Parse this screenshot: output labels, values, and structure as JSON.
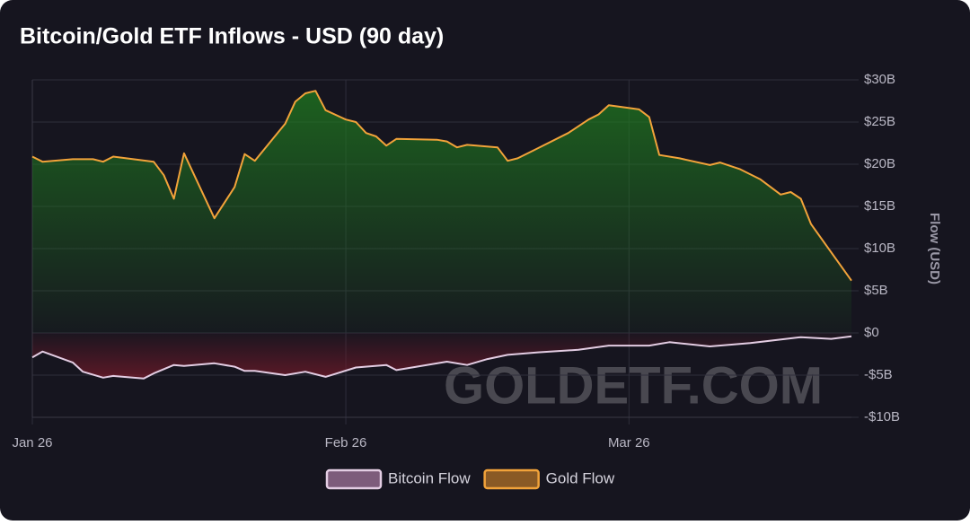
{
  "chart_data": {
    "type": "area",
    "title": "Bitcoin/Gold ETF Inflows - USD (90 day)",
    "y_label": "Flow (USD)",
    "watermark": "GOLDETF.COM",
    "xlim": [
      0,
      81
    ],
    "xticks": [
      {
        "value": 0,
        "label": "Jan 26"
      },
      {
        "value": 31,
        "label": "Feb 26"
      },
      {
        "value": 59,
        "label": "Mar 26"
      }
    ],
    "ylim": [
      -10,
      30
    ],
    "yticks": [
      {
        "value": 30,
        "label": "$30B"
      },
      {
        "value": 25,
        "label": "$25B"
      },
      {
        "value": 20,
        "label": "$20B"
      },
      {
        "value": 15,
        "label": "$15B"
      },
      {
        "value": 10,
        "label": "$10B"
      },
      {
        "value": 5,
        "label": "$5B"
      },
      {
        "value": 0,
        "label": "$0"
      },
      {
        "value": -5,
        "label": "-$5B"
      },
      {
        "value": -10,
        "label": "-$10B"
      }
    ],
    "grid": true,
    "legend": "bottom",
    "series": [
      {
        "name": "Bitcoin Flow",
        "color": "#e3cde3",
        "fill": "#7d5c7b",
        "area_color": "#7a1a2a",
        "x": [
          0,
          1,
          4,
          5,
          7,
          8,
          11,
          12,
          14,
          15,
          18,
          20,
          21,
          22,
          25,
          27,
          29,
          32,
          35,
          36,
          38,
          41,
          43,
          45,
          47,
          50,
          54,
          57,
          61,
          63,
          67,
          71,
          76,
          79,
          81
        ],
        "values": [
          -2.9,
          -2.2,
          -3.5,
          -4.6,
          -5.3,
          -5.1,
          -5.4,
          -4.8,
          -3.8,
          -3.9,
          -3.6,
          -4.0,
          -4.5,
          -4.5,
          -5.0,
          -4.6,
          -5.2,
          -4.1,
          -3.8,
          -4.4,
          -4.0,
          -3.4,
          -3.8,
          -3.1,
          -2.6,
          -2.3,
          -2.0,
          -1.5,
          -1.5,
          -1.1,
          -1.6,
          -1.2,
          -0.5,
          -0.7,
          -0.4
        ]
      },
      {
        "name": "Gold Flow",
        "color": "#f2a33a",
        "fill": "#8a5a25",
        "area_color": "#1f7a1f",
        "x": [
          0,
          1,
          4,
          6,
          7,
          8,
          10,
          12,
          13,
          14,
          15,
          18,
          20,
          21,
          22,
          25,
          26,
          27,
          28,
          29,
          31,
          32,
          33,
          34,
          35,
          36,
          40,
          41,
          42,
          43,
          46,
          47,
          48,
          50,
          53,
          55,
          56,
          57,
          60,
          61,
          62,
          64,
          67,
          68,
          70,
          72,
          74,
          75,
          76,
          77,
          81
        ],
        "values": [
          20.9,
          20.3,
          20.6,
          20.6,
          20.3,
          20.9,
          20.6,
          20.3,
          18.7,
          15.9,
          21.3,
          13.6,
          17.3,
          21.2,
          20.4,
          24.8,
          27.4,
          28.4,
          28.7,
          26.4,
          25.3,
          25.0,
          23.7,
          23.3,
          22.2,
          23.0,
          22.9,
          22.7,
          22.0,
          22.3,
          22.0,
          20.4,
          20.7,
          21.9,
          23.7,
          25.3,
          25.9,
          27.0,
          26.5,
          25.6,
          21.1,
          20.7,
          19.9,
          20.2,
          19.4,
          18.2,
          16.4,
          16.7,
          15.9,
          12.9,
          6.2
        ]
      }
    ]
  }
}
